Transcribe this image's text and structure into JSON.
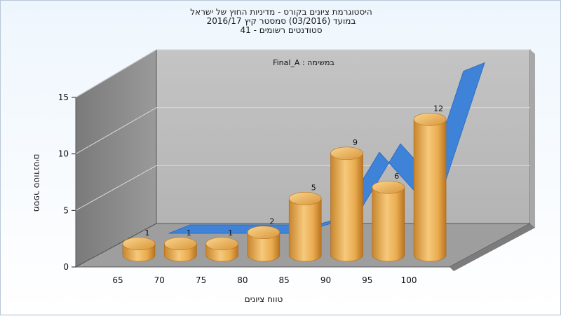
{
  "title": {
    "line1": "היסטוגרמת ציונים בקורס - מדיניות החוץ של ישראל",
    "line2": "במועד  (03/2016)  סמסטר קיץ  2016/17",
    "line3": "סטודנטים רשומים - 41"
  },
  "colors": {
    "bar": "#e8a94c",
    "bar_dark": "#c27d23",
    "bar_light": "#f7cf86",
    "ribbon": "#3d7fd6",
    "wall": "#8c8c8c",
    "floor": "#9a9a9a",
    "back_wall": "#bfbfbf"
  },
  "chart_data": {
    "type": "bar",
    "annotation": "במשימה : Final_A",
    "xlabel": "טווח ציונים",
    "ylabel": "מספר סטודנטים",
    "ylim": [
      0,
      15
    ],
    "y_ticks": [
      "0",
      "5",
      "10",
      "15"
    ],
    "x_ticks": [
      "65",
      "70",
      "75",
      "80",
      "85",
      "90",
      "95",
      "100"
    ],
    "categories": [
      "65",
      "70",
      "75",
      "80",
      "85",
      "90",
      "95",
      "100"
    ],
    "values": [
      1,
      1,
      1,
      2,
      5,
      9,
      6,
      12
    ],
    "data_labels": [
      "1",
      "1",
      "1",
      "2",
      "5",
      "9",
      "6",
      "12"
    ],
    "trend_series": [
      0,
      0,
      0,
      0,
      1,
      7,
      3,
      14
    ],
    "grid": true
  }
}
